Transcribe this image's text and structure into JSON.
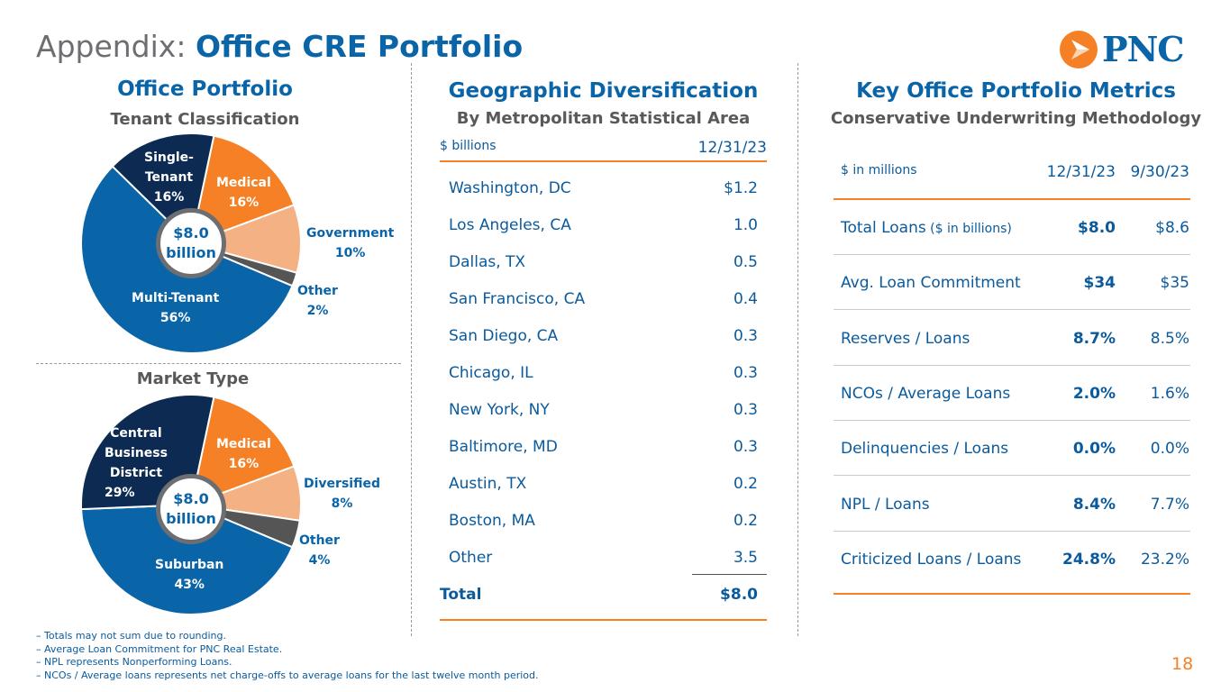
{
  "title": {
    "prefix": "Appendix: ",
    "main": "Office CRE Portfolio"
  },
  "logo": {
    "text": "PNC",
    "colors": {
      "orange": "#f58025",
      "blue": "#0a64a8"
    }
  },
  "office_portfolio": {
    "title": "Office Portfolio",
    "subtitle": "Tenant Classification",
    "center_line1": "$8.0",
    "center_line2": "billion",
    "market_subtitle": "Market Type"
  },
  "chart_data": [
    {
      "type": "pie",
      "title": "Tenant Classification",
      "total": "$8.0 billion",
      "categories": [
        "Medical",
        "Government",
        "Other",
        "Multi-Tenant",
        "Single-Tenant"
      ],
      "values": [
        16,
        10,
        2,
        56,
        16
      ],
      "labels": [
        "16%",
        "10%",
        "2%",
        "56%",
        "16%"
      ],
      "colors": [
        "#f58025",
        "#f4b183",
        "#555555",
        "#0a64a8",
        "#0d2b52"
      ]
    },
    {
      "type": "pie",
      "title": "Market Type",
      "total": "$8.0 billion",
      "categories": [
        "Medical",
        "Diversified",
        "Other",
        "Suburban",
        "Central Business District"
      ],
      "values": [
        16,
        8,
        4,
        43,
        29
      ],
      "labels": [
        "16%",
        "8%",
        "4%",
        "43%",
        "29%"
      ],
      "colors": [
        "#f58025",
        "#f4b183",
        "#555555",
        "#0a64a8",
        "#0d2b52"
      ]
    }
  ],
  "pie_text": {
    "tenant": {
      "single1": "Single-",
      "single2": "Tenant",
      "single_pct": "16%",
      "medical": "Medical",
      "medical_pct": "16%",
      "gov": "Government",
      "gov_pct": "10%",
      "other": "Other",
      "other_pct": "2%",
      "multi": "Multi-Tenant",
      "multi_pct": "56%"
    },
    "market": {
      "cbd1": "Central",
      "cbd2": "Business",
      "cbd3": "District",
      "cbd_pct": "29%",
      "medical": "Medical",
      "medical_pct": "16%",
      "div": "Diversified",
      "div_pct": "8%",
      "other": "Other",
      "other_pct": "4%",
      "sub": "Suburban",
      "sub_pct": "43%"
    }
  },
  "geo": {
    "title": "Geographic Diversification",
    "subtitle": "By Metropolitan Statistical Area",
    "unit": "$ billions",
    "date": "12/31/23",
    "rows": [
      {
        "name": "Washington, DC",
        "value": "$1.2"
      },
      {
        "name": "Los Angeles, CA",
        "value": "1.0"
      },
      {
        "name": "Dallas, TX",
        "value": "0.5"
      },
      {
        "name": "San Francisco, CA",
        "value": "0.4"
      },
      {
        "name": "San Diego, CA",
        "value": "0.3"
      },
      {
        "name": "Chicago, IL",
        "value": "0.3"
      },
      {
        "name": "New York, NY",
        "value": "0.3"
      },
      {
        "name": "Baltimore, MD",
        "value": "0.3"
      },
      {
        "name": "Austin, TX",
        "value": "0.2"
      },
      {
        "name": "Boston, MA",
        "value": "0.2"
      },
      {
        "name": "Other",
        "value": "3.5"
      }
    ],
    "total_label": "Total",
    "total_value": "$8.0"
  },
  "metrics": {
    "title": "Key Office Portfolio Metrics",
    "subtitle": "Conservative Underwriting Methodology",
    "unit": "$ in millions",
    "col1": "12/31/23",
    "col2": "9/30/23",
    "rows": [
      {
        "name": "Total Loans",
        "note": " ($ in billions)",
        "v1": "$8.0",
        "v2": "$8.6"
      },
      {
        "name": "Avg. Loan Commitment",
        "note": "",
        "v1": "$34",
        "v2": "$35"
      },
      {
        "name": "Reserves / Loans",
        "note": "",
        "v1": "8.7%",
        "v2": "8.5%"
      },
      {
        "name": "NCOs / Average Loans",
        "note": "",
        "v1": "2.0%",
        "v2": "1.6%"
      },
      {
        "name": "Delinquencies / Loans",
        "note": "",
        "v1": "0.0%",
        "v2": "0.0%"
      },
      {
        "name": "NPL / Loans",
        "note": "",
        "v1": "8.4%",
        "v2": "7.7%"
      },
      {
        "name": "Criticized Loans / Loans",
        "note": "",
        "v1": "24.8%",
        "v2": "23.2%"
      }
    ]
  },
  "footnotes": [
    "– Totals may not sum due to rounding.",
    "– Average Loan Commitment for PNC Real Estate.",
    "– NPL represents Nonperforming Loans.",
    "– NCOs / Average loans represents net charge-offs to average loans for the last twelve month period."
  ],
  "page_number": "18"
}
